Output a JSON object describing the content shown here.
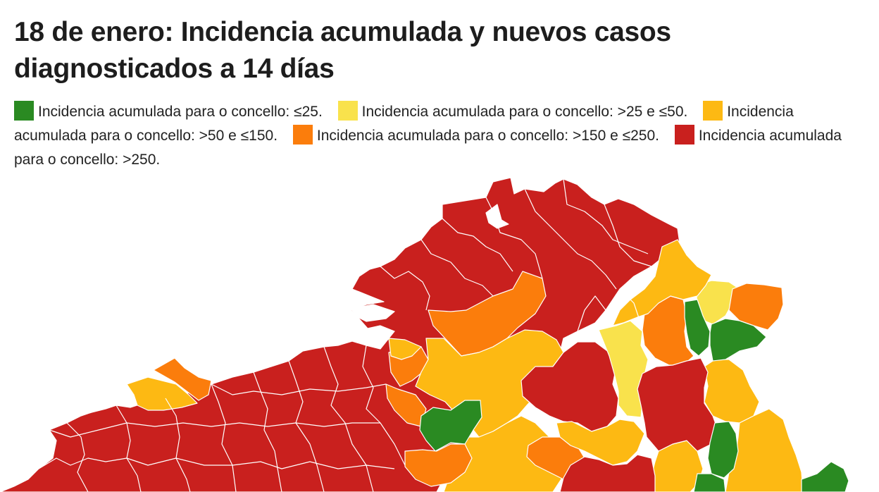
{
  "title": "18 de enero: Incidencia acumulada y nuevos casos diagnosticados a 14 días",
  "legend": [
    {
      "color": "#2a8a22",
      "label": "Incidencia acumulada para o concello: ≤25."
    },
    {
      "color": "#f9e24c",
      "label": "Incidencia acumulada para o concello: >25 e ≤50."
    },
    {
      "color": "#fdb913",
      "label": "Incidencia acumulada para o concello: >50 e ≤150."
    },
    {
      "color": "#fb7d0c",
      "label": "Incidencia acumulada para o concello: >150 e ≤250."
    },
    {
      "color": "#c9201e",
      "label": "Incidencia acumulada para o concello: >250."
    }
  ],
  "map": {
    "color_classes": {
      "le25": "#2a8a22",
      "25to50": "#f9e24c",
      "50to150": "#fdb913",
      "150to250": "#fb7d0c",
      "gt250": "#c9201e"
    }
  }
}
